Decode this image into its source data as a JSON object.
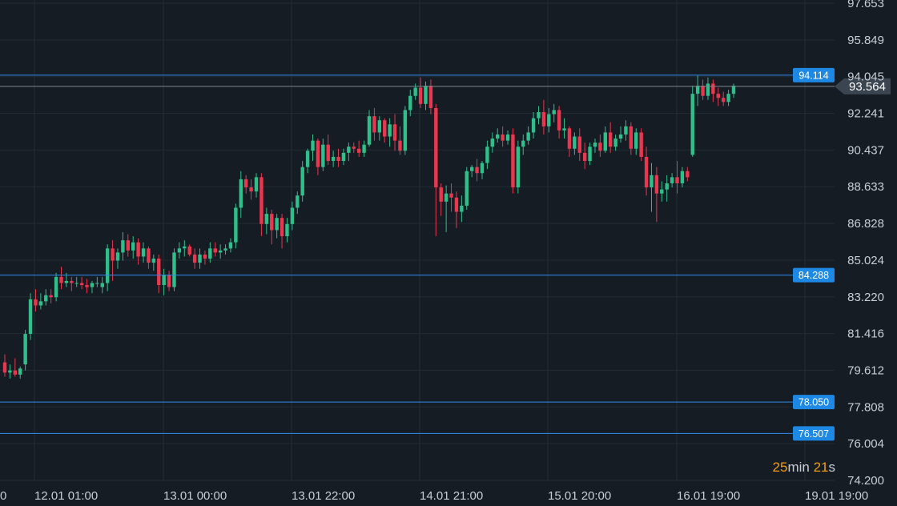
{
  "chart_data": {
    "type": "candlestick",
    "y_axis": {
      "ticks": [
        "97.653",
        "95.849",
        "94.045",
        "92.241",
        "90.437",
        "88.633",
        "86.828",
        "85.024",
        "83.220",
        "81.416",
        "79.612",
        "77.808",
        "76.004",
        "74.200"
      ],
      "range": [
        74.2,
        97.653
      ]
    },
    "x_axis": {
      "labels": [
        "0",
        "12.01 01:00",
        "13.01 00:00",
        "13.01 22:00",
        "14.01 21:00",
        "15.01 20:00",
        "16.01 19:00",
        "19.01 19:00"
      ]
    },
    "horizontal_levels": [
      {
        "value": 94.114,
        "label": "94.114"
      },
      {
        "value": 84.288,
        "label": "84.288"
      },
      {
        "value": 78.05,
        "label": "78.050"
      },
      {
        "value": 76.507,
        "label": "76.507"
      }
    ],
    "current_price": {
      "value": 93.564,
      "label": "93.564"
    },
    "candles": [
      [
        80.0,
        80.4,
        79.3,
        79.5
      ],
      [
        79.5,
        79.9,
        79.2,
        79.6
      ],
      [
        79.6,
        80.2,
        79.3,
        79.4
      ],
      [
        79.4,
        79.8,
        79.2,
        79.7
      ],
      [
        79.9,
        81.6,
        79.6,
        81.4
      ],
      [
        81.4,
        83.4,
        81.1,
        83.1
      ],
      [
        83.1,
        83.6,
        82.5,
        82.8
      ],
      [
        82.8,
        83.4,
        82.6,
        83.0
      ],
      [
        83.0,
        83.6,
        82.8,
        83.3
      ],
      [
        83.3,
        83.6,
        82.9,
        83.2
      ],
      [
        83.2,
        84.4,
        83.0,
        84.2
      ],
      [
        84.2,
        84.7,
        83.6,
        83.9
      ],
      [
        83.9,
        84.4,
        83.7,
        84.0
      ],
      [
        84.0,
        84.2,
        83.5,
        83.9
      ],
      [
        83.9,
        84.2,
        83.7,
        83.9
      ],
      [
        83.9,
        84.2,
        83.6,
        83.8
      ],
      [
        83.8,
        84.1,
        83.4,
        83.7
      ],
      [
        83.7,
        84.0,
        83.4,
        83.9
      ],
      [
        83.9,
        84.2,
        83.7,
        83.9
      ],
      [
        83.7,
        84.2,
        83.4,
        83.9
      ],
      [
        83.9,
        85.8,
        83.5,
        85.6
      ],
      [
        85.6,
        86.0,
        84.0,
        85.0
      ],
      [
        85.0,
        85.6,
        84.6,
        85.4
      ],
      [
        85.4,
        86.4,
        85.0,
        86.0
      ],
      [
        86.0,
        86.3,
        85.2,
        85.5
      ],
      [
        85.5,
        86.2,
        85.1,
        85.9
      ],
      [
        85.9,
        86.1,
        84.8,
        85.2
      ],
      [
        85.2,
        85.9,
        84.9,
        85.6
      ],
      [
        85.6,
        85.7,
        84.6,
        84.9
      ],
      [
        84.9,
        85.3,
        84.5,
        85.1
      ],
      [
        85.1,
        85.3,
        83.4,
        83.8
      ],
      [
        83.8,
        84.6,
        83.3,
        84.3
      ],
      [
        84.3,
        84.5,
        83.5,
        83.7
      ],
      [
        83.7,
        85.6,
        83.5,
        85.4
      ],
      [
        85.4,
        85.9,
        85.1,
        85.6
      ],
      [
        85.6,
        86.0,
        85.2,
        85.7
      ],
      [
        85.7,
        85.8,
        85.2,
        85.3
      ],
      [
        85.3,
        85.6,
        84.6,
        84.9
      ],
      [
        84.9,
        85.6,
        84.6,
        85.3
      ],
      [
        85.3,
        85.5,
        84.8,
        85.1
      ],
      [
        85.1,
        85.9,
        84.9,
        85.6
      ],
      [
        85.6,
        85.9,
        85.2,
        85.4
      ],
      [
        85.4,
        85.8,
        85.1,
        85.5
      ],
      [
        85.5,
        85.8,
        85.3,
        85.6
      ],
      [
        85.6,
        86.1,
        85.4,
        85.9
      ],
      [
        85.9,
        87.8,
        85.6,
        87.6
      ],
      [
        87.6,
        89.4,
        87.1,
        89.0
      ],
      [
        89.0,
        89.2,
        88.3,
        88.6
      ],
      [
        88.6,
        89.0,
        88.0,
        88.4
      ],
      [
        88.4,
        89.3,
        88.1,
        89.1
      ],
      [
        89.1,
        89.3,
        86.2,
        86.8
      ],
      [
        86.8,
        87.6,
        86.3,
        87.3
      ],
      [
        87.3,
        87.5,
        85.8,
        86.5
      ],
      [
        86.5,
        87.3,
        86.1,
        87.1
      ],
      [
        87.1,
        87.3,
        85.6,
        86.2
      ],
      [
        86.2,
        87.1,
        85.9,
        86.8
      ],
      [
        86.8,
        87.9,
        86.5,
        87.6
      ],
      [
        87.6,
        88.4,
        87.3,
        88.2
      ],
      [
        88.2,
        89.9,
        87.9,
        89.6
      ],
      [
        89.6,
        90.5,
        89.3,
        90.4
      ],
      [
        90.4,
        91.2,
        89.9,
        90.9
      ],
      [
        90.9,
        91.0,
        89.2,
        89.6
      ],
      [
        89.6,
        91.0,
        89.4,
        90.7
      ],
      [
        90.7,
        91.2,
        89.7,
        89.9
      ],
      [
        89.9,
        90.4,
        89.6,
        90.1
      ],
      [
        90.1,
        90.5,
        89.6,
        89.9
      ],
      [
        89.9,
        90.5,
        89.7,
        90.3
      ],
      [
        90.3,
        90.8,
        89.9,
        90.6
      ],
      [
        90.6,
        90.8,
        90.3,
        90.5
      ],
      [
        90.5,
        90.9,
        90.1,
        90.3
      ],
      [
        90.3,
        90.9,
        90.1,
        90.7
      ],
      [
        90.7,
        92.4,
        90.6,
        92.1
      ],
      [
        92.1,
        92.5,
        90.9,
        91.3
      ],
      [
        91.3,
        92.1,
        90.9,
        91.9
      ],
      [
        91.9,
        92.0,
        90.8,
        91.1
      ],
      [
        91.1,
        92.0,
        90.6,
        91.7
      ],
      [
        91.7,
        92.2,
        90.4,
        90.9
      ],
      [
        90.9,
        91.6,
        90.2,
        90.4
      ],
      [
        90.4,
        92.6,
        90.2,
        92.4
      ],
      [
        92.4,
        93.4,
        92.1,
        93.1
      ],
      [
        93.1,
        93.7,
        92.9,
        93.5
      ],
      [
        93.5,
        94.0,
        92.5,
        92.7
      ],
      [
        92.7,
        93.8,
        92.4,
        93.6
      ],
      [
        93.6,
        93.9,
        92.2,
        92.5
      ],
      [
        92.5,
        92.7,
        86.2,
        88.6
      ],
      [
        88.6,
        88.8,
        87.2,
        87.9
      ],
      [
        87.9,
        88.7,
        86.4,
        88.3
      ],
      [
        88.3,
        88.8,
        87.4,
        88.1
      ],
      [
        88.1,
        88.4,
        86.6,
        87.4
      ],
      [
        87.4,
        88.2,
        86.9,
        87.7
      ],
      [
        87.7,
        89.6,
        87.5,
        89.4
      ],
      [
        89.4,
        89.7,
        89.1,
        89.6
      ],
      [
        89.6,
        90.0,
        88.9,
        89.3
      ],
      [
        89.3,
        89.9,
        89.0,
        89.8
      ],
      [
        89.8,
        90.9,
        89.5,
        90.6
      ],
      [
        90.6,
        91.3,
        90.3,
        91.0
      ],
      [
        91.0,
        91.5,
        90.8,
        91.2
      ],
      [
        91.2,
        91.6,
        90.6,
        90.9
      ],
      [
        90.9,
        91.4,
        90.7,
        91.2
      ],
      [
        91.2,
        91.5,
        88.3,
        88.6
      ],
      [
        88.6,
        90.9,
        88.3,
        90.6
      ],
      [
        90.6,
        91.2,
        90.2,
        90.9
      ],
      [
        90.9,
        91.6,
        90.7,
        91.3
      ],
      [
        91.3,
        92.3,
        91.0,
        92.0
      ],
      [
        92.0,
        92.6,
        91.7,
        92.3
      ],
      [
        92.3,
        92.9,
        91.2,
        91.6
      ],
      [
        91.6,
        92.5,
        91.3,
        92.2
      ],
      [
        92.2,
        92.7,
        91.8,
        92.4
      ],
      [
        92.4,
        92.6,
        91.0,
        91.4
      ],
      [
        91.4,
        92.0,
        91.0,
        91.5
      ],
      [
        91.5,
        91.6,
        90.1,
        90.5
      ],
      [
        90.5,
        91.3,
        90.2,
        91.1
      ],
      [
        91.1,
        91.5,
        89.9,
        90.3
      ],
      [
        90.3,
        90.8,
        89.5,
        89.9
      ],
      [
        89.9,
        90.8,
        89.7,
        90.6
      ],
      [
        90.6,
        91.0,
        90.3,
        90.8
      ],
      [
        90.8,
        91.2,
        90.1,
        90.4
      ],
      [
        90.4,
        91.6,
        90.3,
        91.3
      ],
      [
        91.3,
        91.8,
        90.3,
        90.6
      ],
      [
        90.6,
        91.2,
        90.4,
        91.0
      ],
      [
        91.0,
        91.6,
        90.8,
        91.2
      ],
      [
        91.2,
        91.9,
        90.9,
        91.6
      ],
      [
        91.6,
        91.8,
        90.2,
        90.5
      ],
      [
        90.5,
        91.5,
        90.2,
        91.3
      ],
      [
        91.3,
        91.5,
        89.9,
        90.1
      ],
      [
        90.1,
        90.6,
        88.2,
        88.6
      ],
      [
        88.6,
        89.8,
        87.4,
        89.2
      ],
      [
        89.2,
        89.6,
        86.9,
        88.3
      ],
      [
        88.3,
        88.9,
        87.9,
        88.5
      ],
      [
        88.5,
        89.2,
        87.9,
        88.8
      ],
      [
        88.8,
        89.3,
        88.6,
        89.1
      ],
      [
        89.1,
        89.9,
        88.3,
        88.8
      ],
      [
        88.8,
        89.6,
        88.6,
        89.4
      ],
      [
        89.4,
        89.6,
        88.9,
        89.1
      ],
      [
        90.2,
        93.6,
        90.1,
        93.2
      ],
      [
        93.2,
        94.1,
        92.6,
        93.6
      ],
      [
        93.6,
        93.9,
        92.9,
        93.1
      ],
      [
        93.1,
        94.0,
        92.9,
        93.7
      ],
      [
        93.7,
        93.9,
        92.8,
        93.2
      ],
      [
        93.2,
        93.5,
        92.6,
        93.0
      ],
      [
        93.0,
        93.3,
        92.6,
        92.8
      ],
      [
        92.8,
        93.4,
        92.6,
        93.2
      ],
      [
        93.2,
        93.7,
        93.0,
        93.6
      ]
    ]
  },
  "timer": {
    "minutes": "25",
    "min_unit": "min",
    "seconds": "21",
    "sec_unit": "s"
  }
}
